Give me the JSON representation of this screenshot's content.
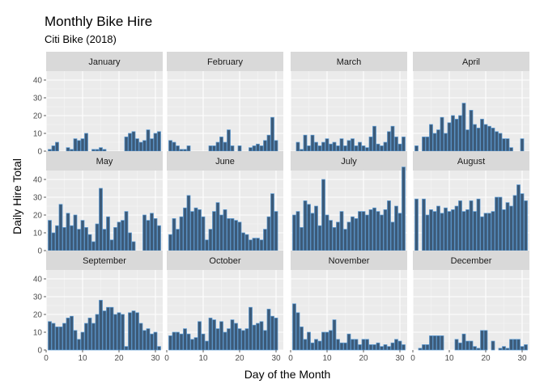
{
  "chart_data": {
    "type": "bar",
    "title": "Monthly Bike Hire",
    "subtitle": "Citi Bike (2018)",
    "xlabel": "Day of the Month",
    "ylabel": "Daily Hire Total",
    "xlim": [
      0,
      32
    ],
    "ylim": [
      0,
      45
    ],
    "x_ticks": [
      0,
      10,
      20,
      30
    ],
    "y_ticks": [
      0,
      10,
      20,
      30,
      40
    ],
    "grid": true,
    "facet_layout": "4 columns x 3 rows",
    "colors": {
      "bar_fill": "#3c5a78",
      "bar_outline": "#5b9bd5",
      "panel_bg": "#ebebeb",
      "strip_bg": "#d9d9d9"
    },
    "panels": [
      {
        "name": "January",
        "values": [
          1,
          3,
          5,
          0,
          0,
          2,
          1,
          7,
          6,
          7,
          10,
          0,
          1,
          1,
          2,
          1,
          0,
          0,
          0,
          0,
          0,
          8,
          10,
          11,
          7,
          5,
          6,
          12,
          7,
          10,
          11
        ]
      },
      {
        "name": "February",
        "values": [
          6,
          5,
          3,
          1,
          1,
          3,
          0,
          0,
          0,
          0,
          0,
          3,
          3,
          5,
          8,
          5,
          12,
          3,
          0,
          3,
          0,
          0,
          2,
          3,
          4,
          3,
          6,
          9,
          19,
          6
        ]
      },
      {
        "name": "March",
        "values": [
          0,
          5,
          1,
          9,
          3,
          9,
          5,
          3,
          5,
          7,
          4,
          5,
          3,
          7,
          3,
          6,
          7,
          3,
          5,
          3,
          2,
          8,
          14,
          4,
          3,
          5,
          11,
          14,
          8,
          4,
          8
        ]
      },
      {
        "name": "April",
        "values": [
          3,
          0,
          8,
          8,
          15,
          10,
          12,
          19,
          10,
          16,
          20,
          18,
          20,
          27,
          12,
          23,
          15,
          13,
          18,
          15,
          14,
          13,
          11,
          10,
          7,
          7,
          2,
          0,
          0,
          7
        ]
      },
      {
        "name": "May",
        "values": [
          17,
          10,
          14,
          26,
          13,
          21,
          14,
          20,
          12,
          17,
          13,
          9,
          5,
          15,
          35,
          12,
          19,
          6,
          13,
          16,
          17,
          22,
          10,
          5,
          0,
          0,
          20,
          17,
          21,
          18,
          14
        ]
      },
      {
        "name": "June",
        "values": [
          9,
          18,
          12,
          19,
          24,
          31,
          22,
          24,
          23,
          19,
          6,
          12,
          22,
          27,
          20,
          23,
          18,
          18,
          17,
          16,
          10,
          9,
          6,
          7,
          7,
          6,
          12,
          19,
          32,
          22
        ]
      },
      {
        "name": "July",
        "values": [
          20,
          22,
          13,
          28,
          26,
          21,
          25,
          14,
          40,
          20,
          17,
          13,
          16,
          22,
          12,
          16,
          19,
          18,
          22,
          22,
          20,
          23,
          24,
          22,
          20,
          23,
          28,
          16,
          25,
          21,
          47
        ]
      },
      {
        "name": "August",
        "values": [
          29,
          0,
          29,
          20,
          23,
          22,
          25,
          21,
          24,
          22,
          23,
          25,
          28,
          22,
          23,
          28,
          22,
          29,
          19,
          21,
          21,
          22,
          30,
          30,
          23,
          27,
          25,
          31,
          37,
          32,
          28
        ]
      },
      {
        "name": "September",
        "values": [
          16,
          15,
          13,
          13,
          15,
          18,
          19,
          11,
          6,
          10,
          15,
          18,
          15,
          20,
          28,
          22,
          24,
          24,
          20,
          21,
          20,
          2,
          21,
          22,
          21,
          15,
          11,
          12,
          9,
          10,
          2
        ]
      },
      {
        "name": "October",
        "values": [
          8,
          10,
          10,
          9,
          12,
          9,
          6,
          7,
          16,
          9,
          5,
          18,
          17,
          12,
          16,
          10,
          12,
          17,
          15,
          12,
          11,
          12,
          24,
          14,
          15,
          16,
          11,
          23,
          19,
          18,
          0
        ]
      },
      {
        "name": "November",
        "values": [
          26,
          21,
          13,
          6,
          10,
          4,
          6,
          5,
          10,
          10,
          11,
          17,
          6,
          4,
          4,
          9,
          6,
          6,
          3,
          6,
          6,
          3,
          3,
          4,
          2,
          3,
          2,
          4,
          6,
          5,
          3
        ]
      },
      {
        "name": "December",
        "values": [
          0,
          1,
          3,
          3,
          8,
          8,
          8,
          8,
          0,
          0,
          0,
          6,
          4,
          9,
          5,
          5,
          2,
          1,
          11,
          11,
          0,
          5,
          0,
          1,
          2,
          1,
          6,
          6,
          6,
          2,
          3
        ]
      }
    ]
  }
}
